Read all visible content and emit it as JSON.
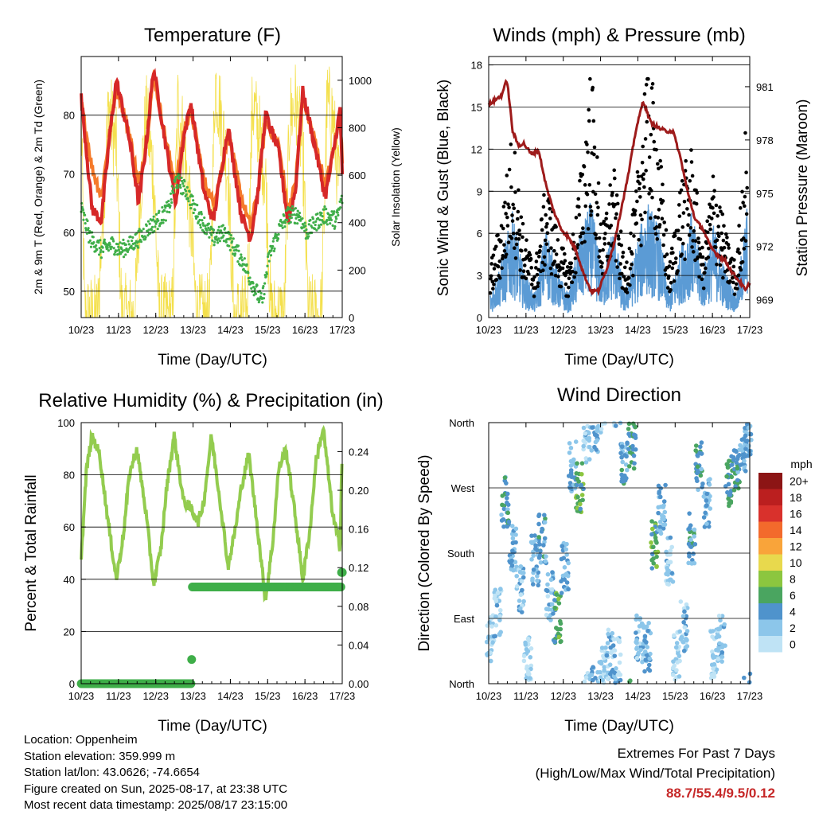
{
  "colors": {
    "temp2m": "#d62828",
    "temp9m": "#f57a2a",
    "dew": "#3fae49",
    "solar": "#f4e04d",
    "gust": "#000000",
    "wind": "#5b9bd5",
    "pressure": "#9e1b1b",
    "rh": "#93cc4f",
    "rain": "#3fae49",
    "speed_scale": [
      "#bfe3f5",
      "#8cc6ea",
      "#4f93cc",
      "#4aa560",
      "#8cc63f",
      "#e8d94d",
      "#f9a43a",
      "#f36a2c",
      "#d9312c",
      "#bb1f1f",
      "#8c1515"
    ]
  },
  "x_ticks": [
    "10/23",
    "11/23",
    "12/23",
    "13/23",
    "14/23",
    "15/23",
    "16/23",
    "17/23"
  ],
  "panels": {
    "temperature": {
      "title": "Temperature (F)",
      "ylabel_left": "2m & 9m T (Red, Orange) & 2m Td (Green)",
      "ylabel_right": "Solar Insolation (Yellow)",
      "xlabel": "Time (Day/UTC)",
      "left_ticks": [
        "50",
        "60",
        "70",
        "80"
      ],
      "right_ticks": [
        "0",
        "200",
        "400",
        "600",
        "800",
        "1000"
      ]
    },
    "winds": {
      "title": "Winds (mph) & Pressure (mb)",
      "ylabel_left": "Sonic Wind & Gust (Blue, Black)",
      "ylabel_right": "Station Pressure (Maroon)",
      "xlabel": "Time (Day/UTC)",
      "left_ticks": [
        "0",
        "3",
        "6",
        "9",
        "12",
        "15",
        "18"
      ],
      "right_ticks": [
        "969",
        "972",
        "975",
        "978",
        "981"
      ]
    },
    "humidity": {
      "title": "Relative Humidity (%) & Precipitation (in)",
      "ylabel_left": "Percent & Total Rainfall",
      "xlabel": "Time (Day/UTC)",
      "left_ticks": [
        "0",
        "20",
        "40",
        "60",
        "80",
        "100"
      ],
      "right_ticks": [
        "0.00",
        "0.04",
        "0.08",
        "0.12",
        "0.16",
        "0.20",
        "0.24"
      ]
    },
    "direction": {
      "title": "Wind Direction",
      "ylabel_left": "Direction (Colored By Speed)",
      "xlabel": "Time (Day/UTC)",
      "dir_ticks": [
        "North",
        "East",
        "South",
        "West",
        "North"
      ],
      "legend_title": "mph",
      "legend_labels": [
        "0",
        "2",
        "4",
        "6",
        "8",
        "10",
        "12",
        "14",
        "16",
        "18",
        "20+"
      ]
    }
  },
  "chart_data": [
    {
      "type": "line",
      "title": "Temperature (F)",
      "x_range_days": [
        10.958,
        17.958
      ],
      "ylim": [
        45.5,
        90
      ],
      "y2lim": [
        0,
        1100
      ],
      "series": [
        {
          "name": "2m T",
          "axis": "left",
          "x": [
            10.96,
            11.25,
            11.5,
            11.7,
            11.9,
            12.25,
            12.5,
            12.7,
            12.9,
            13.25,
            13.5,
            13.7,
            13.9,
            14.25,
            14.5,
            14.7,
            14.9,
            15.25,
            15.5,
            15.7,
            15.9,
            16.25,
            16.5,
            16.7,
            16.9,
            17.25,
            17.5,
            17.7,
            17.9,
            17.96
          ],
          "values": [
            83,
            64,
            62,
            75,
            86,
            76,
            65,
            75,
            88,
            74,
            65,
            76,
            82,
            67,
            62,
            70,
            78,
            63,
            59,
            67,
            80,
            74,
            62,
            67,
            84,
            74,
            66,
            73,
            81,
            70
          ]
        },
        {
          "name": "9m T",
          "axis": "left",
          "x": [
            10.96,
            11.25,
            11.5,
            11.7,
            11.9,
            12.25,
            12.5,
            12.7,
            12.9,
            13.25,
            13.5,
            13.7,
            13.9,
            14.25,
            14.5,
            14.7,
            14.9,
            15.25,
            15.5,
            15.7,
            15.9,
            16.25,
            16.5,
            16.7,
            16.9,
            17.25,
            17.5,
            17.7,
            17.9,
            17.96
          ],
          "values": [
            82,
            71,
            66,
            76,
            85,
            77,
            68,
            75,
            87,
            75,
            68,
            77,
            81,
            69,
            65,
            70,
            77,
            66,
            61,
            67,
            79,
            75,
            64,
            68,
            83,
            75,
            68,
            73,
            80,
            72
          ]
        },
        {
          "name": "2m Td",
          "axis": "left",
          "x": [
            10.96,
            11.2,
            11.5,
            11.8,
            12.0,
            12.3,
            12.5,
            12.8,
            13.0,
            13.3,
            13.5,
            13.8,
            14.0,
            14.3,
            14.5,
            14.8,
            15.0,
            15.3,
            15.5,
            15.8,
            16.0,
            16.3,
            16.5,
            16.8,
            17.0,
            17.3,
            17.5,
            17.8,
            17.96
          ],
          "values": [
            64,
            59,
            57,
            58,
            57,
            58,
            59,
            61,
            62,
            64,
            69,
            67,
            64,
            61,
            59,
            60,
            58,
            55,
            52,
            48,
            56,
            61,
            63,
            63,
            60,
            62,
            63,
            62,
            66
          ]
        },
        {
          "name": "Solar",
          "axis": "right",
          "x": [
            10.96,
            11.05,
            11.4,
            11.55,
            11.7,
            11.9,
            12.05,
            12.4,
            12.55,
            12.7,
            12.9,
            13.05,
            13.4,
            13.55,
            13.7,
            13.9,
            14.05,
            14.4,
            14.55,
            14.7,
            14.9,
            15.05,
            15.4,
            15.55,
            15.7,
            15.9,
            16.05,
            16.4,
            16.55,
            16.7,
            16.9,
            17.05,
            17.4,
            17.55,
            17.7,
            17.9
          ],
          "values": [
            850,
            0,
            0,
            500,
            900,
            700,
            0,
            0,
            550,
            850,
            600,
            0,
            0,
            900,
            750,
            400,
            0,
            0,
            1000,
            850,
            600,
            0,
            0,
            900,
            800,
            600,
            0,
            0,
            850,
            900,
            700,
            0,
            0,
            900,
            850,
            500
          ]
        }
      ]
    },
    {
      "type": "line",
      "title": "Winds (mph) & Pressure (mb)",
      "x_range_days": [
        10.958,
        17.958
      ],
      "ylim": [
        0,
        18.6
      ],
      "y2lim": [
        968,
        982.7
      ],
      "series": [
        {
          "name": "Sonic Wind",
          "axis": "left",
          "x": [
            11.0,
            11.3,
            11.6,
            11.9,
            12.2,
            12.5,
            12.8,
            13.1,
            13.4,
            13.7,
            14.0,
            14.3,
            14.6,
            14.9,
            15.2,
            15.5,
            15.8,
            16.1,
            16.4,
            16.7,
            17.0,
            17.3,
            17.6,
            17.9
          ],
          "values": [
            1,
            2.5,
            4.5,
            2,
            1,
            4,
            2,
            1,
            3.5,
            5,
            2,
            4,
            1,
            3,
            5,
            4,
            1,
            3,
            4.5,
            2,
            4,
            2,
            1,
            5
          ]
        },
        {
          "name": "Gust",
          "axis": "left",
          "x": [
            11.0,
            11.3,
            11.6,
            11.9,
            12.2,
            12.5,
            12.8,
            13.1,
            13.4,
            13.7,
            14.0,
            14.3,
            14.6,
            14.9,
            15.2,
            15.5,
            15.8,
            16.1,
            16.4,
            16.7,
            17.0,
            17.3,
            17.6,
            17.9
          ],
          "values": [
            3,
            6,
            11,
            5,
            3,
            8,
            5,
            3,
            8,
            15,
            5,
            9,
            3,
            7,
            16,
            11,
            3,
            8,
            10,
            4,
            9,
            5,
            3,
            13
          ]
        },
        {
          "name": "Pressure",
          "axis": "right",
          "x": [
            10.96,
            11.1,
            11.3,
            11.45,
            11.6,
            11.75,
            11.9,
            12.1,
            12.3,
            12.5,
            12.7,
            12.9,
            13.1,
            13.3,
            13.5,
            13.7,
            13.9,
            14.1,
            14.3,
            14.5,
            14.7,
            14.9,
            15.1,
            15.3,
            15.5,
            15.7,
            15.9,
            16.1,
            16.3,
            16.5,
            16.7,
            16.9,
            17.1,
            17.3,
            17.5,
            17.7,
            17.85,
            17.96
          ],
          "values": [
            980,
            980.2,
            980.5,
            981.4,
            978.5,
            977.7,
            977.8,
            977.2,
            977.4,
            975.4,
            974,
            973,
            972.5,
            971.8,
            970.5,
            969.5,
            969.5,
            970.6,
            972,
            974,
            976,
            978.5,
            980.2,
            979,
            978.7,
            978.5,
            978.5,
            977,
            975,
            973.5,
            973,
            972,
            971.5,
            971.2,
            970.5,
            970,
            969.5,
            970
          ]
        }
      ]
    },
    {
      "type": "line",
      "title": "Relative Humidity (%) & Precipitation (in)",
      "x_range_days": [
        10.958,
        17.958
      ],
      "ylim": [
        0,
        100
      ],
      "y2lim": [
        0,
        0.27
      ],
      "series": [
        {
          "name": "RH",
          "axis": "left",
          "x": [
            10.96,
            11.1,
            11.25,
            11.45,
            11.7,
            11.9,
            12.1,
            12.25,
            12.45,
            12.7,
            12.9,
            13.1,
            13.25,
            13.45,
            13.7,
            13.9,
            14.1,
            14.25,
            14.45,
            14.7,
            14.9,
            15.1,
            15.25,
            15.45,
            15.7,
            15.9,
            16.1,
            16.25,
            16.45,
            16.7,
            16.9,
            17.1,
            17.25,
            17.45,
            17.7,
            17.9,
            17.96
          ],
          "values": [
            48,
            82,
            95,
            88,
            60,
            40,
            58,
            80,
            90,
            65,
            38,
            52,
            75,
            95,
            70,
            67,
            62,
            70,
            95,
            68,
            45,
            60,
            75,
            88,
            58,
            32,
            55,
            82,
            90,
            64,
            40,
            60,
            85,
            98,
            65,
            52,
            93
          ]
        },
        {
          "name": "Total Rainfall",
          "axis": "right",
          "x": [
            10.96,
            13.9,
            13.92,
            13.94,
            17.92,
            17.94,
            17.96
          ],
          "values": [
            0,
            0,
            0.025,
            0.1,
            0.1,
            0.115,
            0.115
          ]
        }
      ]
    },
    {
      "type": "scatter",
      "title": "Wind Direction",
      "x_range_days": [
        10.958,
        17.958
      ],
      "ylim": [
        0,
        360
      ],
      "y_ticks": {
        "0": "North",
        "90": "East",
        "180": "South",
        "270": "West",
        "360": "North"
      },
      "color_by": "speed (mph)",
      "series": [
        {
          "name": "Direction",
          "x": [
            11.0,
            11.2,
            11.4,
            11.6,
            11.8,
            12.0,
            12.2,
            12.4,
            12.6,
            12.8,
            13.0,
            13.2,
            13.4,
            13.6,
            13.8,
            14.0,
            14.2,
            14.4,
            14.6,
            14.8,
            15.0,
            15.2,
            15.4,
            15.6,
            15.8,
            16.0,
            16.2,
            16.4,
            16.6,
            16.8,
            17.0,
            17.2,
            17.4,
            17.6,
            17.8,
            17.9
          ],
          "values": [
            60,
            100,
            250,
            190,
            130,
            40,
            170,
            200,
            120,
            90,
            160,
            300,
            270,
            340,
            350,
            20,
            40,
            30,
            300,
            330,
            60,
            50,
            190,
            240,
            170,
            40,
            80,
            200,
            300,
            250,
            40,
            60,
            280,
            300,
            320,
            340
          ],
          "speeds": [
            1,
            2,
            4,
            3,
            2,
            1,
            3,
            4,
            2,
            6,
            3,
            3,
            6,
            2,
            3,
            1,
            2,
            2,
            4,
            5,
            2,
            3,
            6,
            3,
            2,
            1,
            2,
            4,
            4,
            3,
            1,
            2,
            5,
            4,
            3,
            3
          ]
        }
      ]
    }
  ],
  "info": {
    "location": "Location: Oppenheim",
    "elevation": "Station elevation: 359.999 m",
    "latlon": "Station lat/lon: 43.0626; -74.6654",
    "created": "Figure created on Sun, 2025-08-17, at 23:38 UTC",
    "recent": "Most recent data timestamp: 2025/08/17 23:15:00"
  },
  "extremes": {
    "line1": "Extremes For Past 7 Days",
    "line2": "(High/Low/Max Wind/Total Precipitation)",
    "values": "88.7/55.4/9.5/0.12"
  }
}
